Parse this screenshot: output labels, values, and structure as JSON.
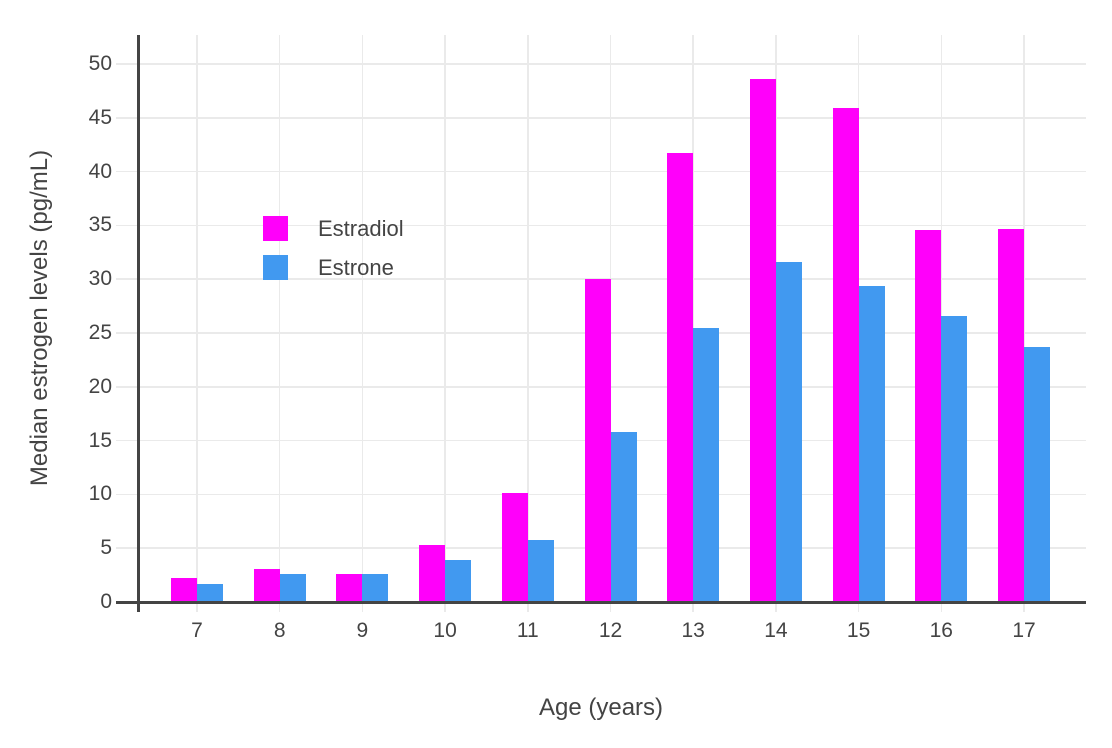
{
  "chart": {
    "y_axis_title": "Median estrogen levels (pg/mL)",
    "x_axis_title": "Age (years)",
    "legend": {
      "items": [
        {
          "label": "Estradiol",
          "color": "#FF00FA"
        },
        {
          "label": "Estrone",
          "color": "#4199F0"
        }
      ]
    }
  },
  "chart_data": {
    "type": "bar",
    "categories": [
      "7",
      "8",
      "9",
      "10",
      "11",
      "12",
      "13",
      "14",
      "15",
      "16",
      "17"
    ],
    "series": [
      {
        "name": "Estradiol",
        "color": "#FF00FA",
        "values": [
          2.2,
          3.1,
          2.6,
          5.3,
          10.1,
          30.0,
          41.7,
          48.6,
          45.9,
          34.6,
          34.7
        ]
      },
      {
        "name": "Estrone",
        "color": "#4199F0",
        "values": [
          1.7,
          2.6,
          2.6,
          3.9,
          5.8,
          15.8,
          25.5,
          31.6,
          29.4,
          26.6,
          23.7
        ]
      }
    ],
    "title": "",
    "xlabel": "Age (years)",
    "ylabel": "Median estrogen levels (pg/mL)",
    "ylim": [
      0,
      52.7
    ],
    "yticks": [
      0,
      5,
      10,
      15,
      20,
      25,
      30,
      35,
      40,
      45,
      50
    ],
    "grid": true,
    "legend_position": "inside-top-left",
    "colors": {
      "grid": "#EAEAEA",
      "axis": "#444444",
      "text": "#444444",
      "background": "#FFFFFF"
    }
  }
}
